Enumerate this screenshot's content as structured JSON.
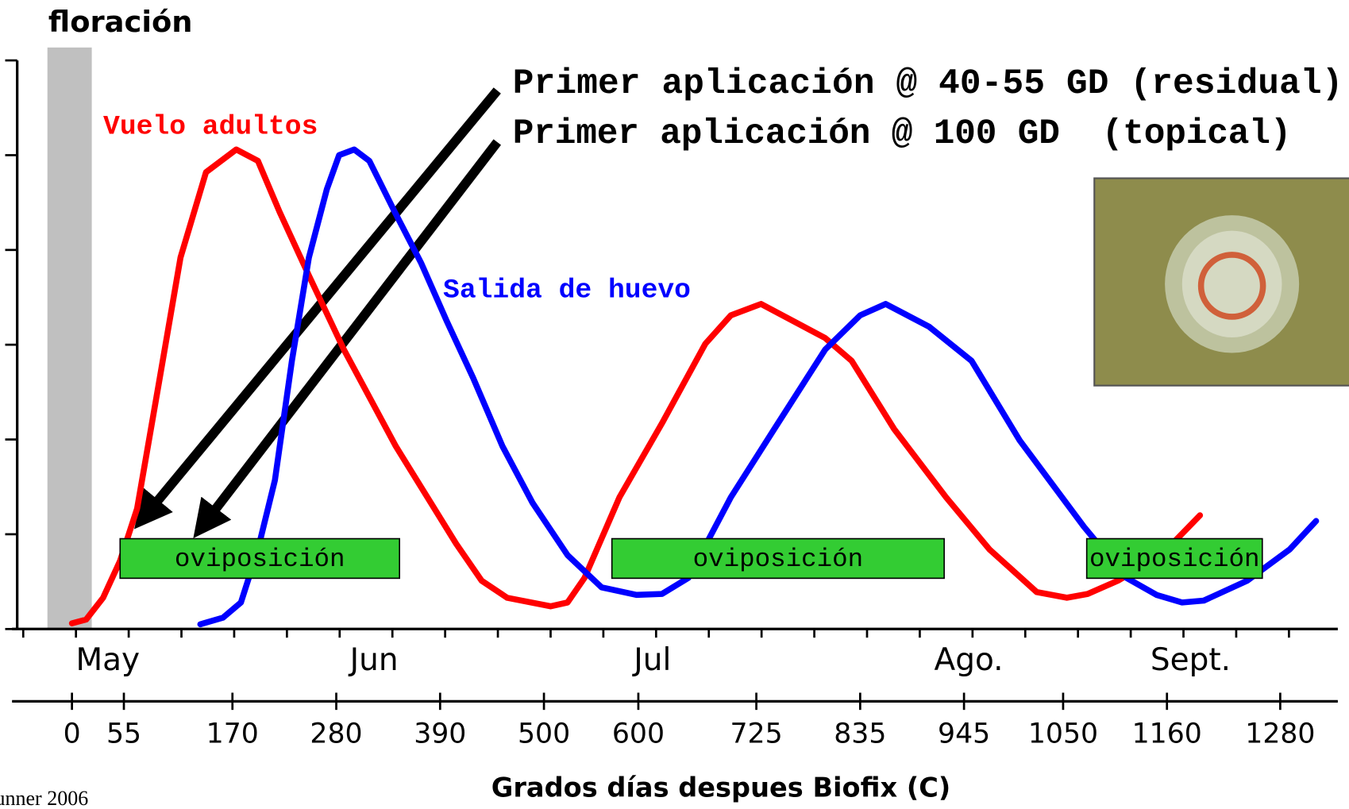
{
  "chart_data": {
    "type": "line",
    "xlabel": "Grados días despues Biofix (C)",
    "xlim": [
      -58,
      1341
    ],
    "ylim": [
      0,
      6
    ],
    "yticks": [
      0,
      1,
      2,
      3,
      4,
      5,
      6
    ],
    "xticks": [
      0,
      55,
      170,
      280,
      390,
      500,
      600,
      725,
      835,
      945,
      1050,
      1160,
      1280
    ],
    "x2ticks": [
      {
        "value": 38,
        "label": "May"
      },
      {
        "value": 320,
        "label": "Jun"
      },
      {
        "value": 615,
        "label": "Jul"
      },
      {
        "value": 950,
        "label": "Ago."
      },
      {
        "value": 1185,
        "label": "Sept."
      }
    ],
    "series": [
      {
        "name": "Vuelo adultos",
        "color": "#ff0000",
        "x": [
          0,
          15,
          33,
          51,
          69,
          92,
          115,
          142,
          174,
          197,
          220,
          251,
          288,
          343,
          407,
          434,
          461,
          507,
          525,
          543,
          580,
          625,
          671,
          698,
          730,
          798,
          826,
          871,
          926,
          972,
          1022,
          1054,
          1076,
          1108,
          1154,
          1195
        ],
        "values": [
          0.06,
          0.1,
          0.33,
          0.72,
          1.27,
          2.59,
          3.92,
          4.82,
          5.06,
          4.94,
          4.4,
          3.73,
          2.95,
          1.93,
          0.9,
          0.51,
          0.33,
          0.24,
          0.28,
          0.54,
          1.39,
          2.17,
          3.01,
          3.31,
          3.43,
          3.07,
          2.83,
          2.11,
          1.39,
          0.84,
          0.39,
          0.33,
          0.37,
          0.51,
          0.78,
          1.2
        ]
      },
      {
        "name": "Salida de huevo",
        "color": "#0000ff",
        "x": [
          136,
          160,
          179,
          197,
          215,
          233,
          251,
          270,
          283,
          299,
          315,
          342,
          370,
          397,
          425,
          456,
          488,
          525,
          561,
          598,
          625,
          653,
          698,
          744,
          798,
          835,
          862,
          908,
          953,
          1004,
          1072,
          1117,
          1149,
          1176,
          1199,
          1245,
          1290,
          1318
        ],
        "values": [
          0.05,
          0.12,
          0.28,
          0.84,
          1.57,
          2.83,
          3.92,
          4.64,
          5,
          5.06,
          4.94,
          4.4,
          3.86,
          3.25,
          2.65,
          1.93,
          1.33,
          0.78,
          0.44,
          0.36,
          0.37,
          0.54,
          1.39,
          2.11,
          2.95,
          3.31,
          3.43,
          3.19,
          2.83,
          1.99,
          1.08,
          0.54,
          0.36,
          0.28,
          0.3,
          0.51,
          0.84,
          1.14
        ]
      }
    ],
    "bloom": {
      "label": "floración",
      "x": [
        -26,
        21
      ]
    },
    "bands": [
      {
        "label": "oviposición",
        "x": [
          51,
          347
        ],
        "color": "#33cc33"
      },
      {
        "label": "oviposición",
        "x": [
          572,
          924
        ],
        "color": "#33cc33"
      },
      {
        "label": "oviposición",
        "x": [
          1075,
          1261
        ],
        "color": "#33cc33"
      }
    ],
    "annotations": [
      "Primer aplicación @ 40-55 GD (residual)",
      "Primer aplicación @ 100 GD  (topical)"
    ],
    "source": "unner 2006"
  }
}
